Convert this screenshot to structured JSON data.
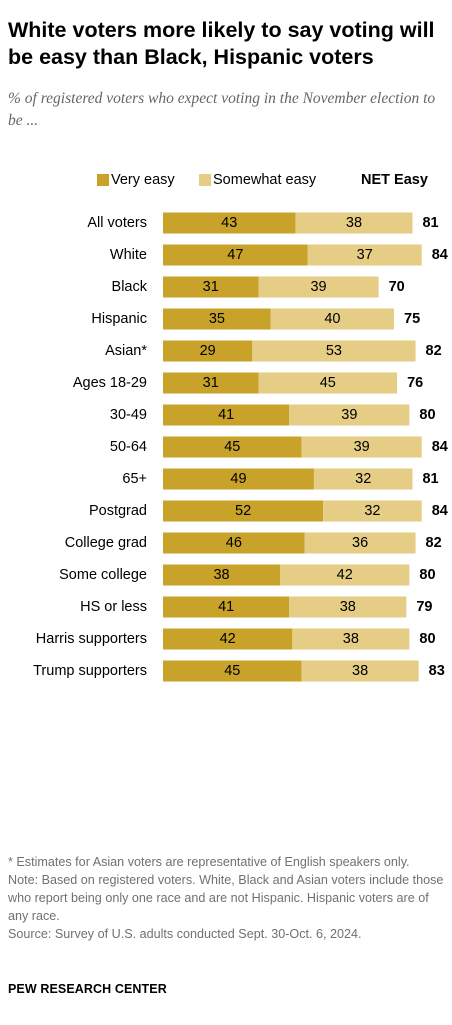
{
  "title": "White voters more likely to say voting will be easy than Black, Hispanic voters",
  "subtitle": "% of registered voters who expect voting in the November election to be ...",
  "colors": {
    "very_easy": "#c9a229",
    "somewhat_easy": "#e5cd85"
  },
  "chart_data": {
    "type": "bar",
    "orientation": "horizontal",
    "stacked": true,
    "legend": {
      "position": "top",
      "entries": [
        "Very easy",
        "Somewhat easy"
      ],
      "net_label": "NET Easy"
    },
    "categories": [
      "All voters",
      "White",
      "Black",
      "Hispanic",
      "Asian*",
      "Ages 18-29",
      "30-49",
      "50-64",
      "65+",
      "Postgrad",
      "College grad",
      "Some college",
      "HS or less",
      "Harris supporters",
      "Trump supporters"
    ],
    "groups": [
      [
        0
      ],
      [
        1,
        2,
        3,
        4
      ],
      [
        5,
        6,
        7,
        8
      ],
      [
        9,
        10,
        11,
        12
      ],
      [
        13,
        14
      ]
    ],
    "series": [
      {
        "name": "Very easy",
        "values": [
          43,
          47,
          31,
          35,
          29,
          31,
          41,
          45,
          49,
          52,
          46,
          38,
          41,
          42,
          45
        ]
      },
      {
        "name": "Somewhat easy",
        "values": [
          38,
          37,
          39,
          40,
          53,
          45,
          39,
          39,
          32,
          32,
          36,
          42,
          38,
          38,
          38
        ]
      }
    ],
    "net": {
      "name": "NET Easy",
      "values": [
        81,
        84,
        70,
        75,
        82,
        76,
        80,
        84,
        81,
        84,
        82,
        80,
        79,
        80,
        83
      ]
    },
    "xlim": [
      0,
      100
    ]
  },
  "notes": [
    "* Estimates for Asian voters are representative of English speakers only.",
    "Note: Based on registered voters. White, Black and Asian voters include those who report being only one race and are not Hispanic. Hispanic voters are of any race.",
    "Source: Survey of U.S. adults conducted Sept. 30-Oct. 6, 2024."
  ],
  "source_org": "PEW RESEARCH CENTER"
}
